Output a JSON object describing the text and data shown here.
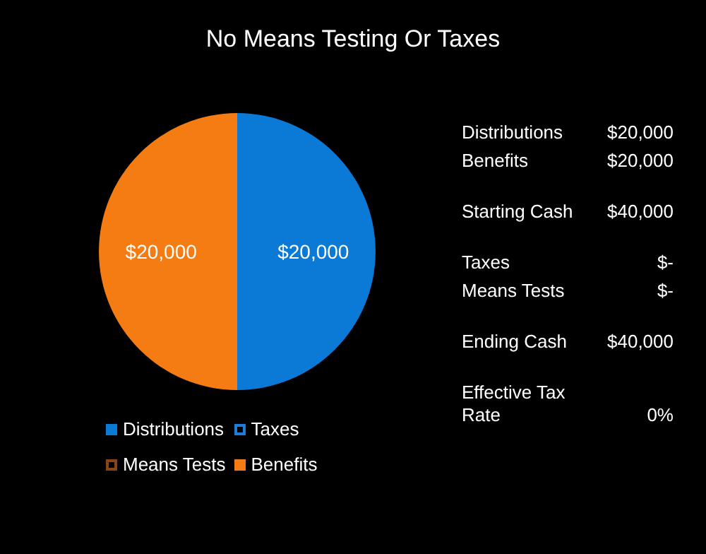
{
  "chart_data": {
    "type": "pie",
    "title": "No Means Testing Or Taxes",
    "categories": [
      "Distributions",
      "Taxes",
      "Means Tests",
      "Benefits"
    ],
    "values": [
      20000,
      0,
      0,
      20000
    ],
    "colors": [
      "#0b79d6",
      "#1a7fd8",
      "#8a4612",
      "#f57c12"
    ],
    "value_labels": [
      "$20,000",
      null,
      null,
      "$20,000"
    ],
    "legend": "bottom",
    "annotations": [
      "Distributions",
      "$20,000",
      "Benefits",
      "$20,000",
      "Starting Cash",
      "$40,000",
      "Taxes",
      "$-",
      "Means Tests",
      "$-",
      "Ending Cash",
      "$40,000",
      "Effective Tax Rate",
      "0%"
    ]
  }
}
